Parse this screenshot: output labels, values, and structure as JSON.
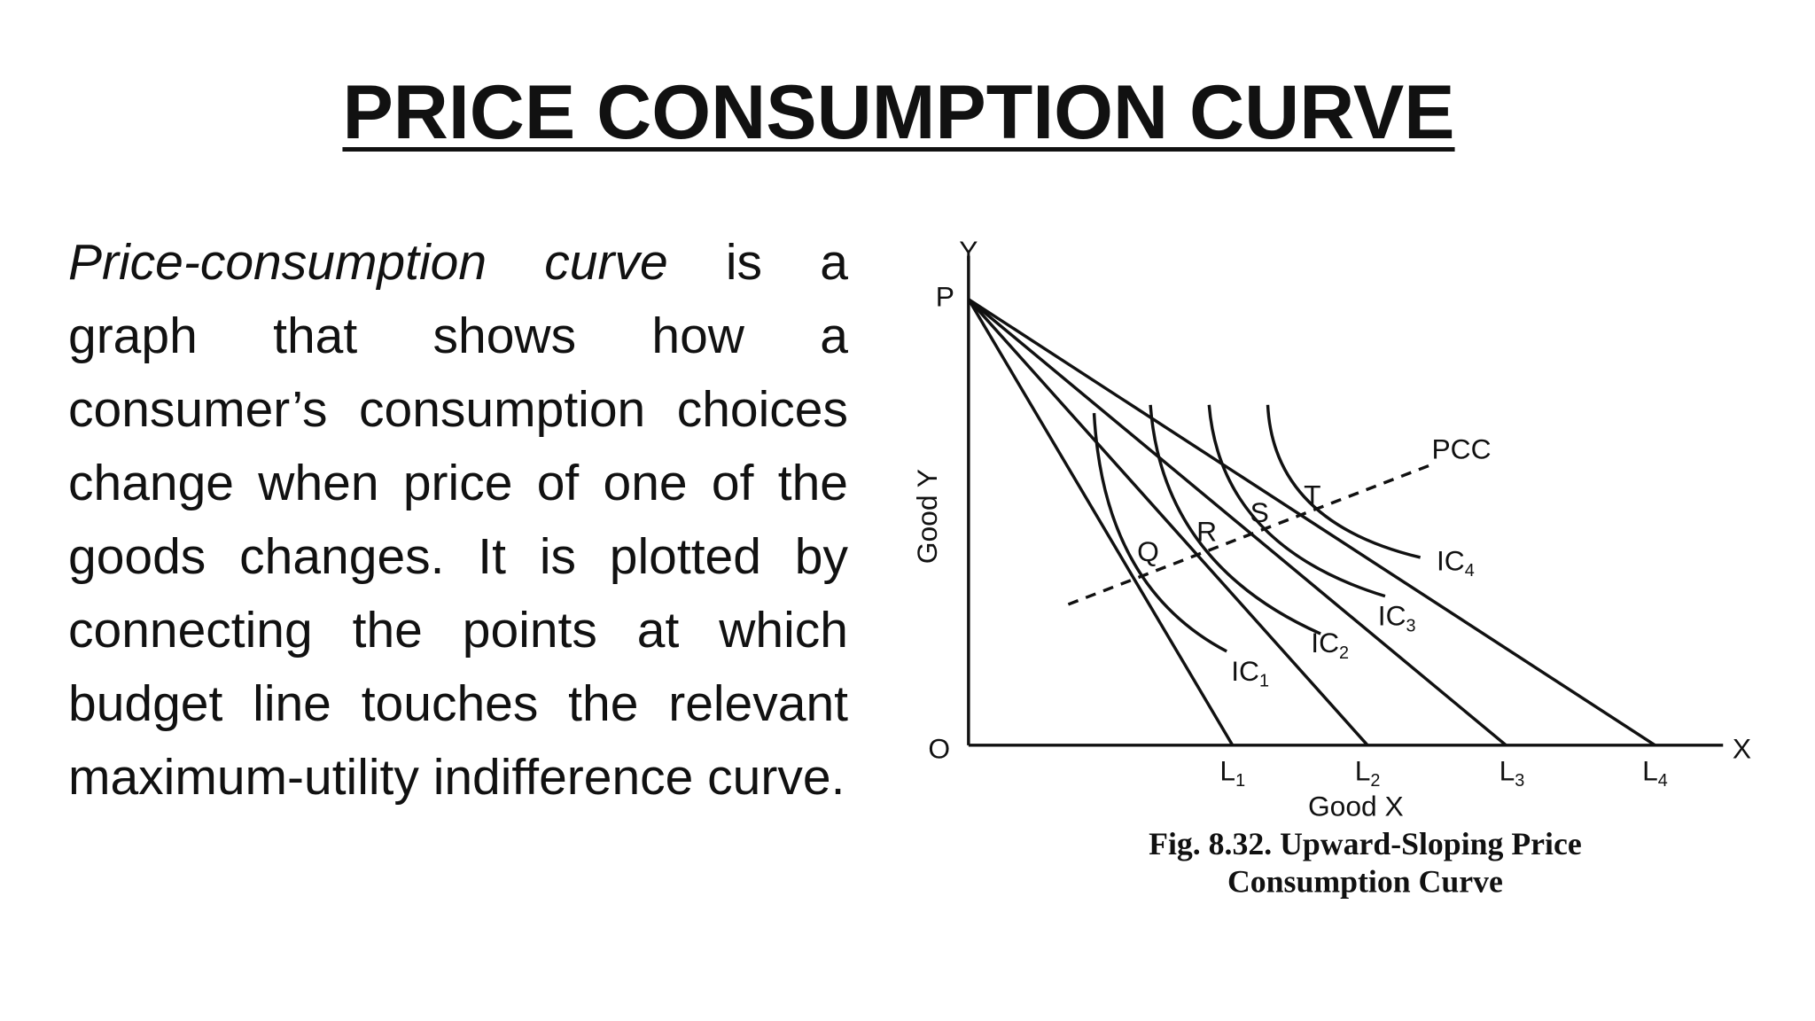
{
  "title": "PRICE CONSUMPTION CURVE",
  "paragraph": {
    "term": "Price-consumption curve",
    "body": "is a graph that shows how a consumer’s consumption choices change when price of one of the goods changes. It is plotted by connecting the points at which budget line touches the relevant maximum-utility indifference curve."
  },
  "figure": {
    "axis_y": "Y",
    "axis_x": "X",
    "origin": "O",
    "point_p": "P",
    "y_label": "Good Y",
    "x_label": "Good X",
    "pcc": "PCC",
    "points": [
      "Q",
      "R",
      "S",
      "T"
    ],
    "budget_lines": [
      {
        "label": "L",
        "sub": "1"
      },
      {
        "label": "L",
        "sub": "2"
      },
      {
        "label": "L",
        "sub": "3"
      },
      {
        "label": "L",
        "sub": "4"
      }
    ],
    "curves": [
      {
        "label": "IC",
        "sub": "1"
      },
      {
        "label": "IC",
        "sub": "2"
      },
      {
        "label": "IC",
        "sub": "3"
      },
      {
        "label": "IC",
        "sub": "4"
      }
    ],
    "caption": [
      "Fig. 8.32. Upward-Sloping Price",
      "Consumption Curve"
    ]
  }
}
